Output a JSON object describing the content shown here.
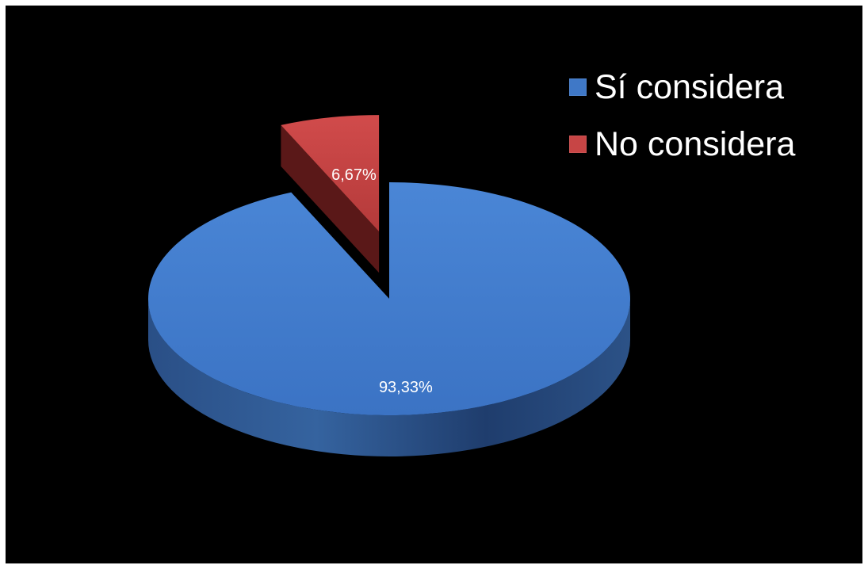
{
  "chart_data": {
    "type": "pie",
    "title": "",
    "categories": [
      "Sí considera",
      "No considera"
    ],
    "values": [
      93.33,
      6.67
    ],
    "data_labels": [
      "93,33%",
      "6,67%"
    ],
    "colors": [
      "#3f78c7",
      "#c74545"
    ],
    "exploded": [
      false,
      true
    ],
    "legend_position": "top-right",
    "background": "#000000",
    "style": "3d"
  }
}
